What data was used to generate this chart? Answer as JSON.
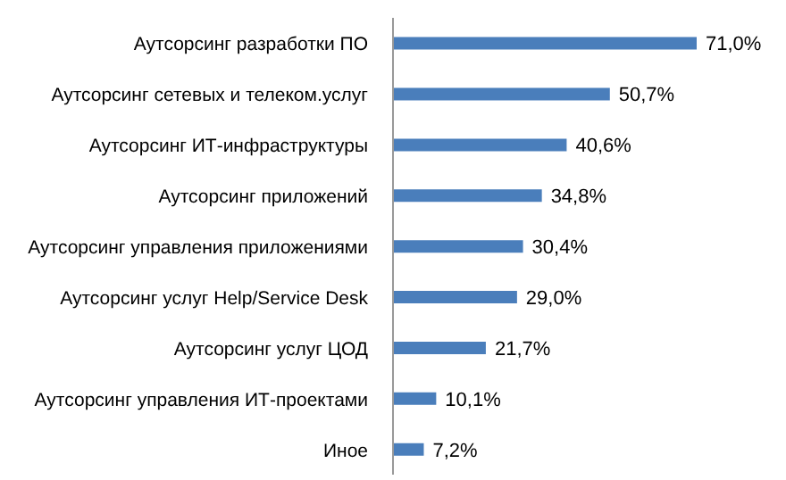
{
  "chart_data": {
    "type": "bar",
    "orientation": "horizontal",
    "categories": [
      "Аутсорсинг разработки ПО",
      "Аутсорсинг сетевых и телеком.услуг",
      "Аутсорсинг ИТ-инфраструктуры",
      "Аутсорсинг приложений",
      "Аутсорсинг управления приложениями",
      "Аутсорсинг услуг Help/Service Desk",
      "Аутсорсинг услуг ЦОД",
      "Аутсорсинг управления ИТ-проектами",
      "Иное"
    ],
    "values": [
      71.0,
      50.7,
      40.6,
      34.8,
      30.4,
      29.0,
      21.7,
      10.1,
      7.2
    ],
    "value_labels": [
      "71,0%",
      "50,7%",
      "40,6%",
      "34,8%",
      "30,4%",
      "29,0%",
      "21,7%",
      "10,1%",
      "7,2%"
    ],
    "color": "#4a7ebb",
    "tick_labels": "y"
  }
}
